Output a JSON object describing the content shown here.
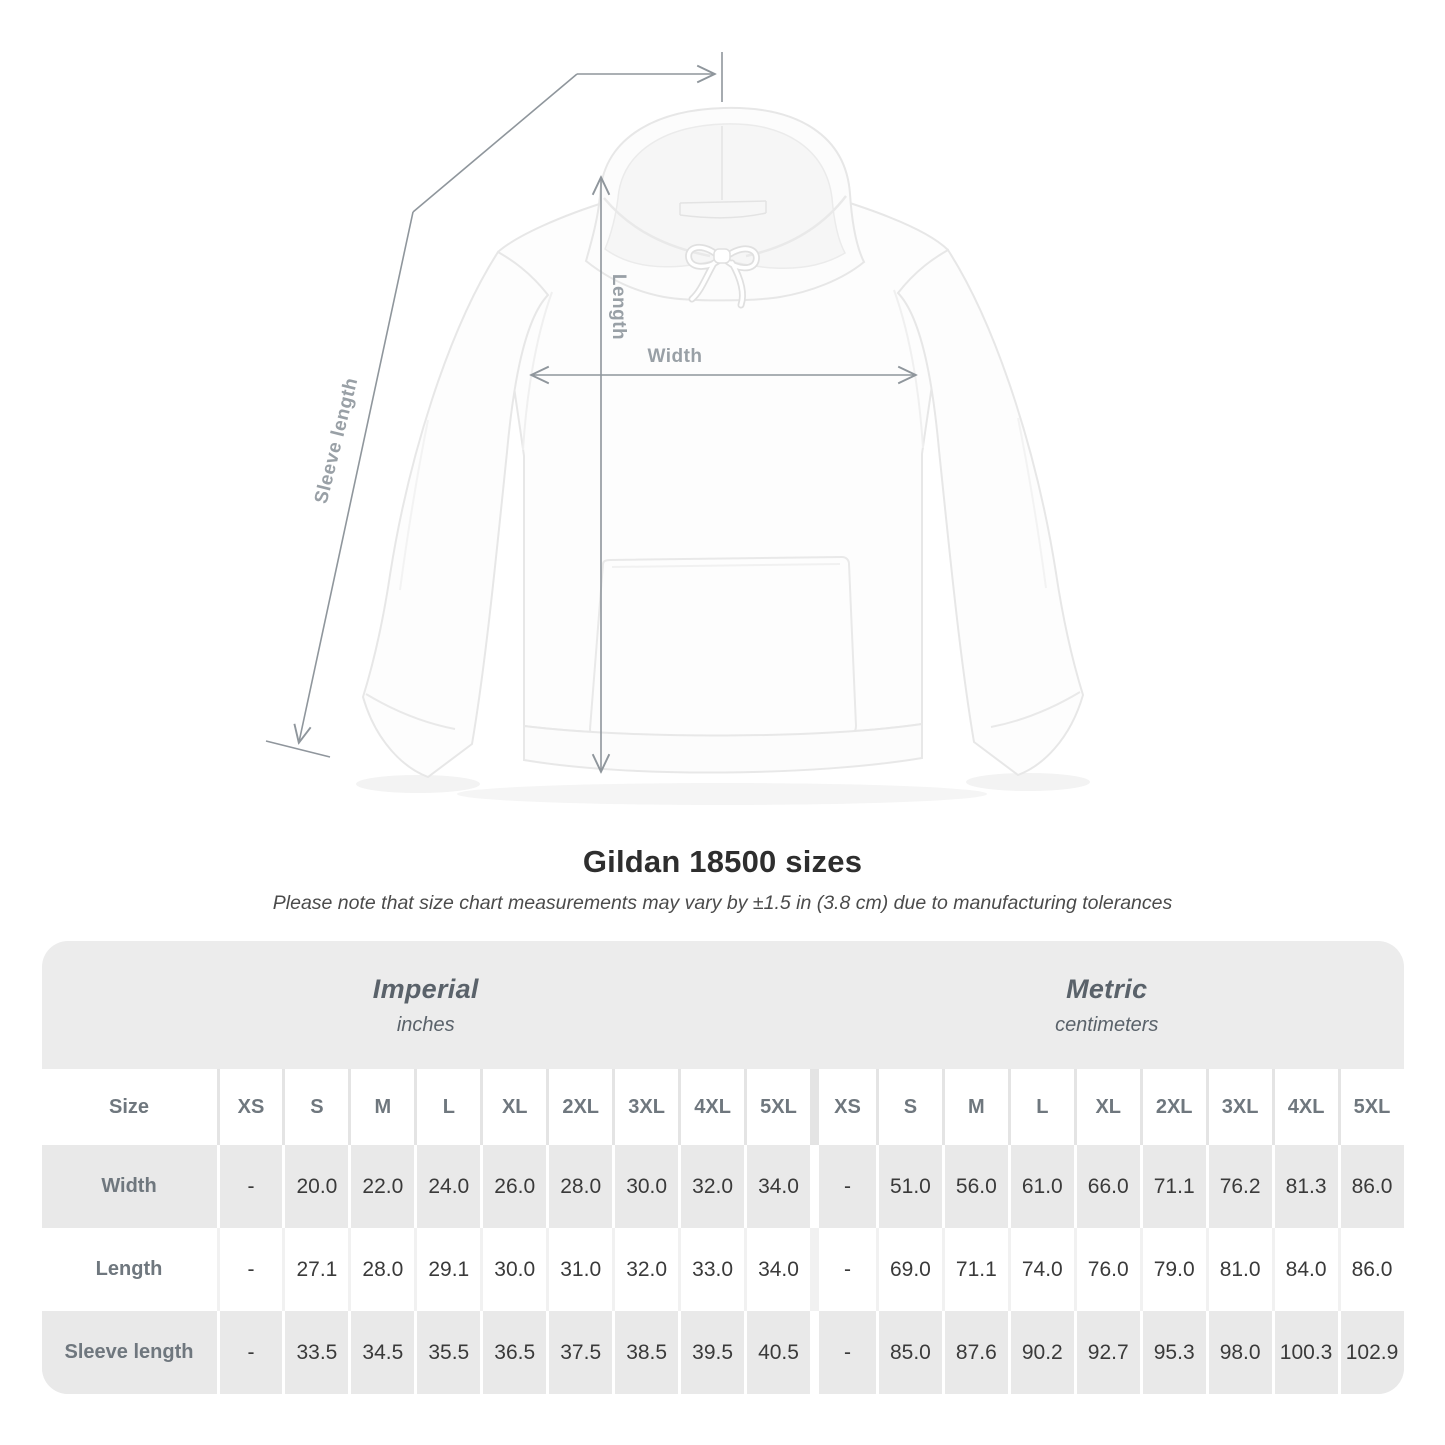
{
  "figure": {
    "labels": {
      "width": "Width",
      "length": "Length",
      "sleeve_length": "Sleeve length"
    }
  },
  "title": "Gildan 18500 sizes",
  "note": "Please note that size chart measurements may vary by ±1.5 in (3.8 cm) due to manufacturing tolerances",
  "table": {
    "groups": [
      {
        "label": "Imperial",
        "sublabel": "inches"
      },
      {
        "label": "Metric",
        "sublabel": "centimeters"
      }
    ],
    "size_header": "Size",
    "sizes": [
      "XS",
      "S",
      "M",
      "L",
      "XL",
      "2XL",
      "3XL",
      "4XL",
      "5XL"
    ],
    "rows": [
      {
        "label": "Width",
        "imperial": [
          "-",
          "20.0",
          "22.0",
          "24.0",
          "26.0",
          "28.0",
          "30.0",
          "32.0",
          "34.0"
        ],
        "metric": [
          "-",
          "51.0",
          "56.0",
          "61.0",
          "66.0",
          "71.1",
          "76.2",
          "81.3",
          "86.0"
        ]
      },
      {
        "label": "Length",
        "imperial": [
          "-",
          "27.1",
          "28.0",
          "29.1",
          "30.0",
          "31.0",
          "32.0",
          "33.0",
          "34.0"
        ],
        "metric": [
          "-",
          "69.0",
          "71.1",
          "74.0",
          "76.0",
          "79.0",
          "81.0",
          "84.0",
          "86.0"
        ]
      },
      {
        "label": "Sleeve length",
        "imperial": [
          "-",
          "33.5",
          "34.5",
          "35.5",
          "36.5",
          "37.5",
          "38.5",
          "39.5",
          "40.5"
        ],
        "metric": [
          "-",
          "85.0",
          "87.6",
          "90.2",
          "92.7",
          "95.3",
          "98.0",
          "100.3",
          "102.9"
        ]
      }
    ]
  },
  "colors": {
    "table_bg": "#ececec",
    "row_alt": "#e9e9e9",
    "measure_line": "#8f969c",
    "measure_label": "#99a0a6",
    "value_text": "#3a3a3a",
    "header_text": "#6f777e"
  }
}
